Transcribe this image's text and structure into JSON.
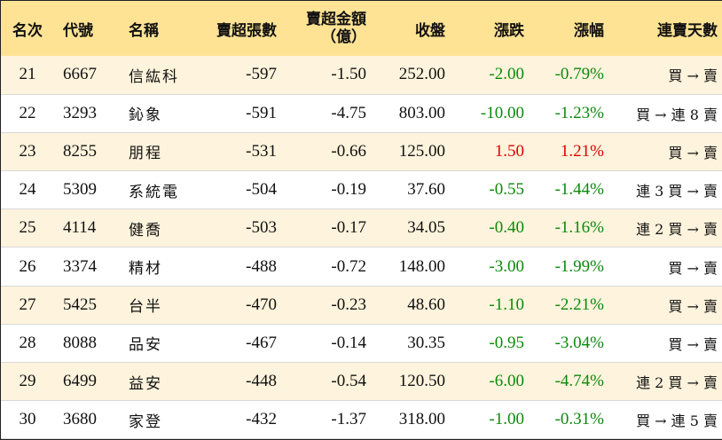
{
  "headers": {
    "rank": "名次",
    "code": "代號",
    "name": "名稱",
    "net_sell_lots": "賣超張數",
    "net_sell_amount_line1": "賣超金額",
    "net_sell_amount_line2": "（億）",
    "close": "收盤",
    "change": "漲跌",
    "change_pct": "漲幅",
    "streak": "連賣天數"
  },
  "colors": {
    "header_bg": "#ffe395",
    "stripe_bg": "#fef3dc",
    "up": "#e00000",
    "down": "#0a8a0a"
  },
  "rows": [
    {
      "rank": "21",
      "code": "6667",
      "name": "信紘科",
      "lots": "-597",
      "amount": "-1.50",
      "close": "252.00",
      "change": "-2.00",
      "pct": "-0.79%",
      "streak": "買 → 賣",
      "dir": "down"
    },
    {
      "rank": "22",
      "code": "3293",
      "name": "鈊象",
      "lots": "-591",
      "amount": "-4.75",
      "close": "803.00",
      "change": "-10.00",
      "pct": "-1.23%",
      "streak": "買 → 連 8 賣",
      "dir": "down"
    },
    {
      "rank": "23",
      "code": "8255",
      "name": "朋程",
      "lots": "-531",
      "amount": "-0.66",
      "close": "125.00",
      "change": "1.50",
      "pct": "1.21%",
      "streak": "買 → 賣",
      "dir": "up"
    },
    {
      "rank": "24",
      "code": "5309",
      "name": "系統電",
      "lots": "-504",
      "amount": "-0.19",
      "close": "37.60",
      "change": "-0.55",
      "pct": "-1.44%",
      "streak": "連 3 買 → 賣",
      "dir": "down"
    },
    {
      "rank": "25",
      "code": "4114",
      "name": "健喬",
      "lots": "-503",
      "amount": "-0.17",
      "close": "34.05",
      "change": "-0.40",
      "pct": "-1.16%",
      "streak": "連 2 買 → 賣",
      "dir": "down"
    },
    {
      "rank": "26",
      "code": "3374",
      "name": "精材",
      "lots": "-488",
      "amount": "-0.72",
      "close": "148.00",
      "change": "-3.00",
      "pct": "-1.99%",
      "streak": "買 → 賣",
      "dir": "down"
    },
    {
      "rank": "27",
      "code": "5425",
      "name": "台半",
      "lots": "-470",
      "amount": "-0.23",
      "close": "48.60",
      "change": "-1.10",
      "pct": "-2.21%",
      "streak": "買 → 賣",
      "dir": "down"
    },
    {
      "rank": "28",
      "code": "8088",
      "name": "品安",
      "lots": "-467",
      "amount": "-0.14",
      "close": "30.35",
      "change": "-0.95",
      "pct": "-3.04%",
      "streak": "買 → 賣",
      "dir": "down"
    },
    {
      "rank": "29",
      "code": "6499",
      "name": "益安",
      "lots": "-448",
      "amount": "-0.54",
      "close": "120.50",
      "change": "-6.00",
      "pct": "-4.74%",
      "streak": "連 2 買 → 賣",
      "dir": "down"
    },
    {
      "rank": "30",
      "code": "3680",
      "name": "家登",
      "lots": "-432",
      "amount": "-1.37",
      "close": "318.00",
      "change": "-1.00",
      "pct": "-0.31%",
      "streak": "買 → 連 5 賣",
      "dir": "down"
    }
  ]
}
